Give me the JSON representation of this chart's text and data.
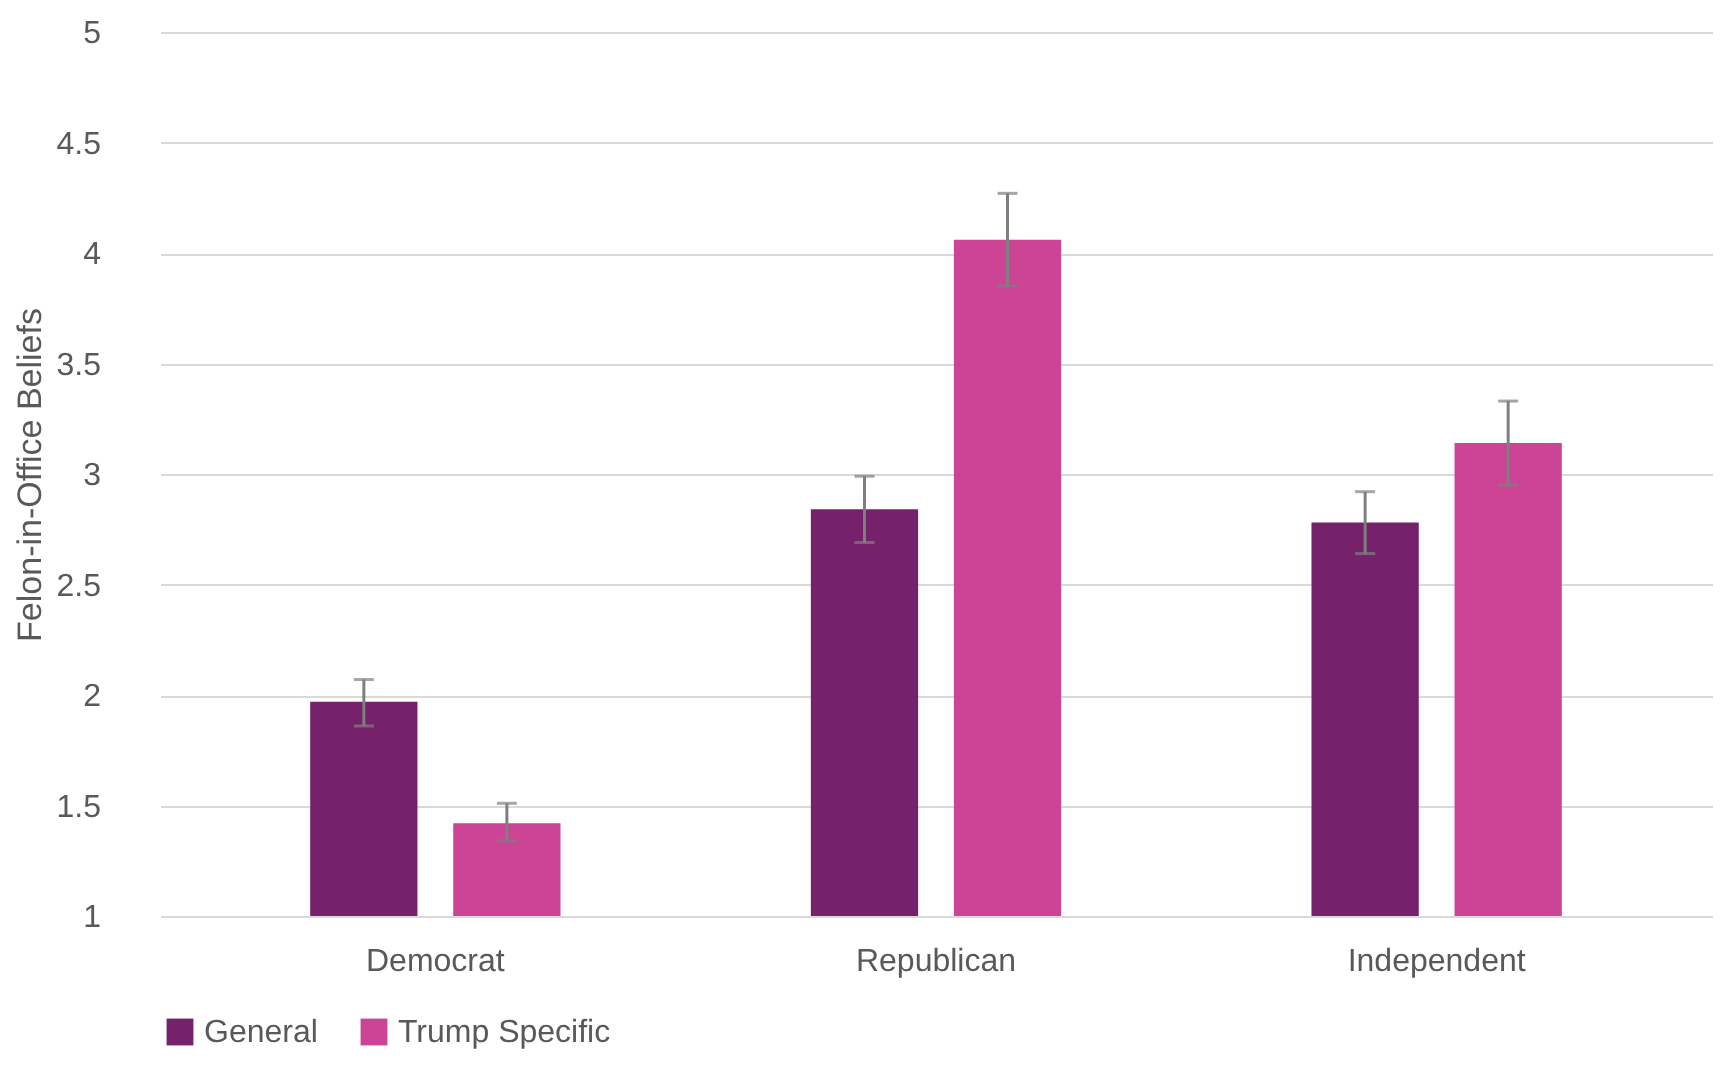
{
  "chart_data": {
    "type": "bar",
    "ylabel": "Felon-in-Office Beliefs",
    "categories": [
      "Democrat",
      "Republican",
      "Independent"
    ],
    "series": [
      {
        "name": "General",
        "color": "#76226b",
        "values": [
          1.97,
          2.84,
          2.78
        ],
        "errors": [
          [
            1.86,
            2.07
          ],
          [
            2.69,
            2.99
          ],
          [
            2.64,
            2.92
          ]
        ]
      },
      {
        "name": "Trump Specific",
        "color": "#cb4496",
        "values": [
          1.42,
          4.06,
          3.14
        ],
        "errors": [
          [
            1.34,
            1.51
          ],
          [
            3.85,
            4.27
          ],
          [
            2.95,
            3.33
          ]
        ]
      }
    ],
    "ylim": [
      1,
      5
    ],
    "yticks": [
      1,
      1.5,
      2,
      2.5,
      3,
      3.5,
      4,
      4.5,
      5
    ],
    "grid": "y",
    "legend": "bottom"
  }
}
